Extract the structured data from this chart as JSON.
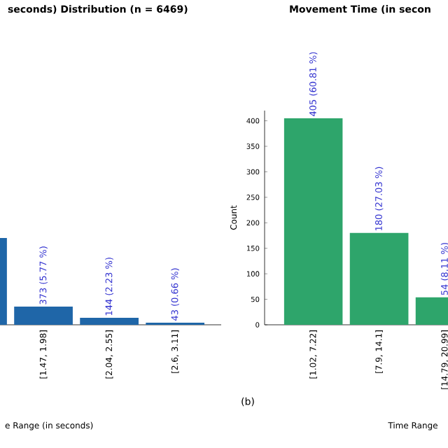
{
  "chart_data": [
    {
      "type": "bar",
      "title": "seconds) Distribution (n = 6469)",
      "xlabel": "e Range (in seconds)",
      "categories": [
        null,
        "[1.47, 1.98]",
        "[2.04, 2.55]",
        "[2.6, 3.11]"
      ],
      "values": [
        1780,
        373,
        144,
        43
      ],
      "value_labels": [
        null,
        "373 (5.77 %)",
        "144 (2.23 %)",
        "43 (0.66 %)"
      ],
      "color": "#1f66a8",
      "tick_labels": "x"
    },
    {
      "type": "bar",
      "title": "Movement Time (in secon",
      "xlabel": "Time Range",
      "ylabel": "Count",
      "categories": [
        "[1.02, 7.22]",
        "[7.9, 14.1]",
        "[14.79, 20.99]"
      ],
      "values": [
        405,
        180,
        54
      ],
      "value_labels": [
        "405 (60.81 %)",
        "180 (27.03 %)",
        "54 (8.11 %)"
      ],
      "color": "#2ea56b",
      "ylim": [
        0,
        420
      ],
      "yticks": [
        0,
        50,
        100,
        150,
        200,
        250,
        300,
        350,
        400
      ],
      "annotations": [
        "(b)"
      ]
    }
  ]
}
